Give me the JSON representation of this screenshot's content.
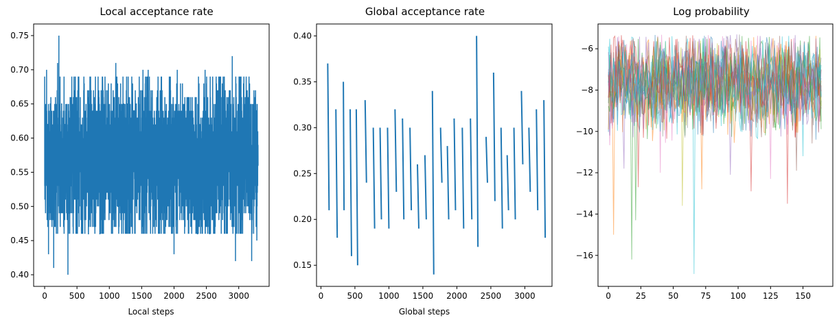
{
  "chart_data": [
    {
      "type": "line",
      "title": "Local acceptance rate",
      "xlabel": "Local steps",
      "ylabel": "",
      "xlim": [
        -170,
        3470
      ],
      "ylim": [
        0.383,
        0.767
      ],
      "xticks": [
        0,
        500,
        1000,
        1500,
        2000,
        2500,
        3000
      ],
      "yticks": [
        0.4,
        0.45,
        0.5,
        0.55,
        0.6,
        0.65,
        0.7,
        0.75
      ],
      "ytick_labels": [
        "0.40",
        "0.45",
        "0.50",
        "0.55",
        "0.60",
        "0.65",
        "0.70",
        "0.75"
      ],
      "color": "#1f77b4",
      "series_spec": {
        "n": 3300,
        "mean": 0.57,
        "sd": 0.055,
        "min": 0.4,
        "max": 0.75,
        "step": 0.01
      },
      "spikes": [
        [
          5,
          0.61
        ],
        [
          12,
          0.51
        ],
        [
          30,
          0.7
        ],
        [
          55,
          0.47
        ],
        [
          60,
          0.43
        ],
        [
          140,
          0.41
        ],
        [
          200,
          0.71
        ],
        [
          220,
          0.75
        ],
        [
          300,
          0.69
        ],
        [
          360,
          0.4
        ],
        [
          420,
          0.69
        ],
        [
          700,
          0.69
        ],
        [
          1100,
          0.71
        ],
        [
          1520,
          0.7
        ],
        [
          1600,
          0.7
        ],
        [
          2000,
          0.43
        ],
        [
          2050,
          0.7
        ],
        [
          2480,
          0.7
        ],
        [
          2900,
          0.72
        ],
        [
          2950,
          0.42
        ],
        [
          3200,
          0.42
        ],
        [
          3280,
          0.45
        ]
      ]
    },
    {
      "type": "line",
      "title": "Global acceptance rate",
      "xlabel": "Global steps",
      "ylabel": "",
      "xlim": [
        -65,
        3400
      ],
      "ylim": [
        0.127,
        0.413
      ],
      "xticks": [
        0,
        500,
        1000,
        1500,
        2000,
        2500,
        3000
      ],
      "yticks": [
        0.15,
        0.2,
        0.25,
        0.3,
        0.35,
        0.4
      ],
      "ytick_labels": [
        "0.15",
        "0.20",
        "0.25",
        "0.30",
        "0.35",
        "0.40"
      ],
      "color": "#1f77b4",
      "x": [
        100,
        120,
        220,
        240,
        330,
        340,
        430,
        450,
        520,
        540,
        650,
        670,
        770,
        790,
        870,
        890,
        980,
        1000,
        1090,
        1110,
        1200,
        1220,
        1310,
        1330,
        1420,
        1440,
        1530,
        1550,
        1640,
        1660,
        1760,
        1780,
        1860,
        1880,
        1960,
        1980,
        2080,
        2100,
        2200,
        2220,
        2290,
        2310,
        2430,
        2450,
        2540,
        2560,
        2650,
        2670,
        2740,
        2760,
        2840,
        2860,
        2950,
        2970,
        3060,
        3080,
        3170,
        3190,
        3280,
        3300
      ],
      "y": [
        0.37,
        0.21,
        0.32,
        0.18,
        0.35,
        0.21,
        0.32,
        0.16,
        0.32,
        0.15,
        0.33,
        0.24,
        0.3,
        0.19,
        0.3,
        0.2,
        0.3,
        0.19,
        0.32,
        0.23,
        0.31,
        0.2,
        0.3,
        0.21,
        0.26,
        0.19,
        0.27,
        0.2,
        0.34,
        0.14,
        0.3,
        0.24,
        0.28,
        0.2,
        0.31,
        0.21,
        0.3,
        0.19,
        0.31,
        0.2,
        0.4,
        0.17,
        0.29,
        0.24,
        0.36,
        0.22,
        0.3,
        0.19,
        0.27,
        0.21,
        0.3,
        0.2,
        0.34,
        0.26,
        0.3,
        0.23,
        0.32,
        0.21,
        0.33,
        0.18
      ]
    },
    {
      "type": "line",
      "title": "Log probability",
      "xlabel": "",
      "ylabel": "",
      "xlim": [
        -8,
        173
      ],
      "ylim": [
        -17.5,
        -4.8
      ],
      "xticks": [
        0,
        25,
        50,
        75,
        100,
        125,
        150
      ],
      "yticks": [
        -16,
        -14,
        -12,
        -10,
        -8,
        -6
      ],
      "ytick_labels": [
        "−16",
        "−14",
        "−12",
        "−10",
        "−8",
        "−6"
      ],
      "series_spec": {
        "n_series": 16,
        "n_points": 165,
        "mean": -7.6,
        "sd": 1.1,
        "max": -5.3,
        "opacity": 0.5
      },
      "colors": [
        "#1f77b4",
        "#ff7f0e",
        "#2ca02c",
        "#d62728",
        "#9467bd",
        "#8c564b",
        "#e377c2",
        "#7f7f7f",
        "#bcbd22",
        "#17becf",
        "#1f77b4",
        "#ff7f0e",
        "#2ca02c",
        "#d62728",
        "#9467bd",
        "#17becf"
      ],
      "spikes": [
        [
          1,
          0,
          -10.2
        ],
        [
          4,
          1,
          -15.0
        ],
        [
          12,
          4,
          -11.8
        ],
        [
          18,
          2,
          -16.2
        ],
        [
          21,
          2,
          -14.3
        ],
        [
          23,
          3,
          -12.7
        ],
        [
          40,
          6,
          -12.0
        ],
        [
          57,
          8,
          -13.6
        ],
        [
          66,
          9,
          -16.9
        ],
        [
          72,
          1,
          -12.8
        ],
        [
          94,
          4,
          -12.1
        ],
        [
          110,
          3,
          -12.9
        ],
        [
          125,
          6,
          -12.3
        ],
        [
          138,
          3,
          -13.5
        ],
        [
          145,
          5,
          -11.9
        ],
        [
          150,
          9,
          -11.2
        ],
        [
          160,
          0,
          -10.4
        ]
      ]
    }
  ]
}
